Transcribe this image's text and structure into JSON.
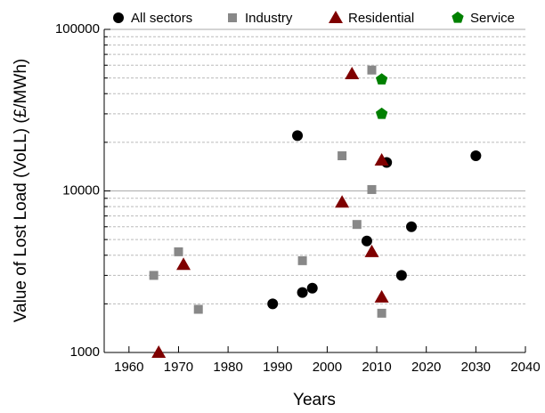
{
  "chart_data": {
    "type": "scatter",
    "xlabel": "Years",
    "ylabel": "Value of Lost Load (VoLL) (£/MWh)",
    "xlim": [
      1955,
      2040
    ],
    "xticks": [
      1960,
      1970,
      1980,
      1990,
      2000,
      2010,
      2020,
      2030,
      2040
    ],
    "ylim": [
      1000,
      100000
    ],
    "ylog": true,
    "yticks": [
      1000,
      10000,
      100000
    ],
    "yminor_ticks": [
      2000,
      3000,
      4000,
      5000,
      6000,
      7000,
      8000,
      9000,
      20000,
      30000,
      40000,
      50000,
      60000,
      70000,
      80000,
      90000
    ],
    "grid": true,
    "legend": "top",
    "series": [
      {
        "name": "All sectors",
        "color": "#000000",
        "marker": "circle",
        "x": [
          1989,
          1994,
          1995,
          1997,
          2008,
          2012,
          2015,
          2017,
          2030
        ],
        "values": [
          2000,
          22000,
          2350,
          2500,
          4900,
          15000,
          3000,
          6000,
          16500
        ]
      },
      {
        "name": "Industry",
        "color": "#888888",
        "marker": "square",
        "x": [
          1965,
          1970,
          1974,
          1995,
          2003,
          2006,
          2009,
          2009,
          2011
        ],
        "values": [
          3000,
          4200,
          1850,
          3700,
          16500,
          6200,
          10200,
          56000,
          1750
        ]
      },
      {
        "name": "Residential",
        "color": "#7f0000",
        "marker": "triangle",
        "x": [
          1966,
          1971,
          2003,
          2005,
          2009,
          2011,
          2011
        ],
        "values": [
          1000,
          3500,
          8500,
          53000,
          4200,
          15500,
          2200
        ]
      },
      {
        "name": "Service",
        "color": "#008000",
        "marker": "pentagon",
        "x": [
          2011,
          2011
        ],
        "values": [
          49000,
          30000
        ]
      }
    ]
  }
}
